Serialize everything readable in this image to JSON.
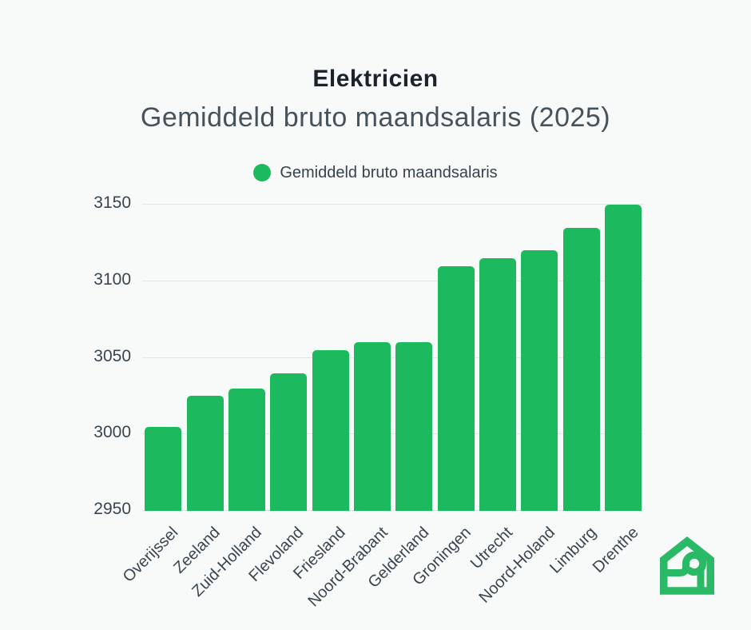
{
  "page": {
    "background": "#f8faf9"
  },
  "header": {
    "title": "Elektricien",
    "subtitle": "Gemiddeld bruto maandsalaris (2025)"
  },
  "legend": {
    "label": "Gemiddeld bruto maandsalaris",
    "dot_color": "#1db95e"
  },
  "chart_data": {
    "type": "bar",
    "title": "Elektricien",
    "subtitle": "Gemiddeld bruto maandsalaris (2025)",
    "legend_entries": [
      "Gemiddeld bruto maandsalaris"
    ],
    "legend_position": "top",
    "categories": [
      "Overijssel",
      "Zeeland",
      "Zuid-Holland",
      "Flevoland",
      "Friesland",
      "Noord-Brabant",
      "Gelderland",
      "Groningen",
      "Utrecht",
      "Noord-Holand",
      "Limburg",
      "Drenthe"
    ],
    "values": [
      3005,
      3025,
      3030,
      3040,
      3055,
      3060,
      3060,
      3110,
      3115,
      3120,
      3135,
      3150
    ],
    "xlabel": "",
    "ylabel": "",
    "ylim": [
      2950,
      3150
    ],
    "yticks": [
      2950,
      3000,
      3050,
      3100,
      3150
    ],
    "grid": true,
    "bar_color": "#1db95e",
    "gridline_color": "#e3e6e7"
  },
  "logo": {
    "name": "house-with-curl-logo",
    "color": "#2ab966"
  }
}
